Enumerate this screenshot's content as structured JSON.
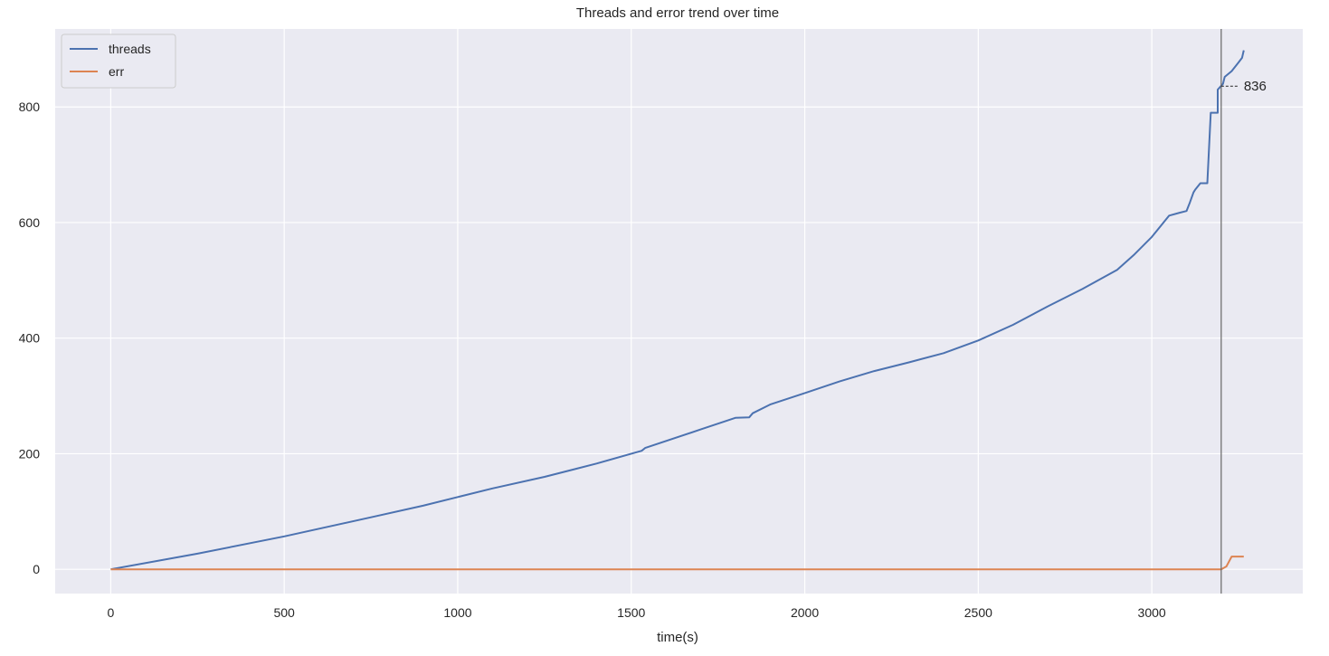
{
  "chart_data": {
    "type": "line",
    "title": "Threads and error trend over time",
    "xlabel": "time(s)",
    "ylabel": "",
    "xlim": [
      -160,
      3435
    ],
    "ylim": [
      -42,
      935
    ],
    "xticks": [
      0,
      500,
      1000,
      1500,
      2000,
      2500,
      3000
    ],
    "yticks": [
      0,
      200,
      400,
      600,
      800
    ],
    "grid": true,
    "legend_position": "upper-left",
    "vline_x": 3200,
    "annotation": {
      "text": "836",
      "x": 3200,
      "y": 836
    },
    "series": [
      {
        "name": "threads",
        "color": "#4c72b0",
        "x": [
          0,
          250,
          500,
          750,
          900,
          1000,
          1100,
          1250,
          1400,
          1530,
          1540,
          1700,
          1800,
          1840,
          1850,
          1900,
          2000,
          2100,
          2200,
          2300,
          2400,
          2500,
          2600,
          2700,
          2800,
          2900,
          2950,
          3000,
          3050,
          3080,
          3100,
          3110,
          3120,
          3125,
          3140,
          3150,
          3160,
          3170,
          3190,
          3190,
          3205,
          3210,
          3230,
          3250,
          3260,
          3265
        ],
        "y": [
          0,
          27,
          57,
          90,
          110,
          125,
          140,
          160,
          183,
          205,
          210,
          242,
          262,
          263,
          270,
          285,
          305,
          325,
          343,
          358,
          374,
          396,
          423,
          455,
          485,
          518,
          545,
          575,
          612,
          617,
          620,
          635,
          652,
          657,
          668,
          668,
          668,
          790,
          790,
          830,
          840,
          852,
          862,
          877,
          885,
          898
        ]
      },
      {
        "name": "err",
        "color": "#dd8452",
        "x": [
          0,
          3200,
          3215,
          3230,
          3265
        ],
        "y": [
          0,
          0,
          5,
          22,
          22
        ]
      }
    ]
  }
}
